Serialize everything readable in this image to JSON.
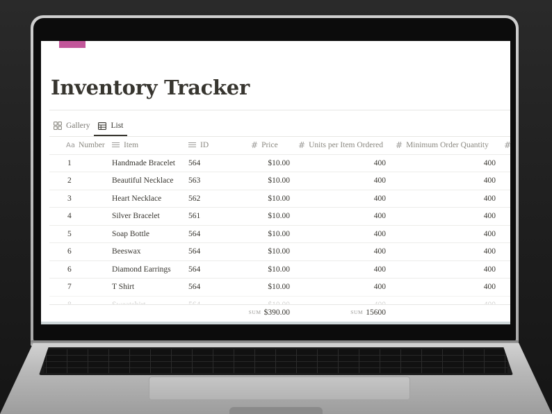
{
  "page": {
    "title": "Inventory Tracker",
    "accent_color": "#c2569a"
  },
  "views": [
    {
      "label": "Gallery",
      "icon": "gallery-grid-icon",
      "active": false
    },
    {
      "label": "List",
      "icon": "table-icon",
      "active": true
    }
  ],
  "table": {
    "columns": [
      {
        "label": "Number",
        "icon": "text-aa-icon"
      },
      {
        "label": "Item",
        "icon": "lines-icon"
      },
      {
        "label": "ID",
        "icon": "lines-icon"
      },
      {
        "label": "Price",
        "icon": "hash-icon"
      },
      {
        "label": "Units per Item Ordered",
        "icon": "hash-icon"
      },
      {
        "label": "Minimum Order Quantity",
        "icon": "hash-icon"
      },
      {
        "label": "#",
        "icon": "hash-icon"
      }
    ],
    "rows": [
      {
        "number": "1",
        "item": "Handmade Bracelet",
        "id": "564",
        "price": "$10.00",
        "units": "400",
        "min": "400"
      },
      {
        "number": "2",
        "item": "Beautiful Necklace",
        "id": "563",
        "price": "$10.00",
        "units": "400",
        "min": "400"
      },
      {
        "number": "3",
        "item": "Heart Necklace",
        "id": "562",
        "price": "$10.00",
        "units": "400",
        "min": "400"
      },
      {
        "number": "4",
        "item": "Silver Bracelet",
        "id": "561",
        "price": "$10.00",
        "units": "400",
        "min": "400"
      },
      {
        "number": "5",
        "item": "Soap Bottle",
        "id": "564",
        "price": "$10.00",
        "units": "400",
        "min": "400"
      },
      {
        "number": "6",
        "item": "Beeswax",
        "id": "564",
        "price": "$10.00",
        "units": "400",
        "min": "400"
      },
      {
        "number": "6",
        "item": "Diamond Earrings",
        "id": "564",
        "price": "$10.00",
        "units": "400",
        "min": "400"
      },
      {
        "number": "7",
        "item": "T Shirt",
        "id": "564",
        "price": "$10.00",
        "units": "400",
        "min": "400"
      },
      {
        "number": "8",
        "item": "Sweatshirt",
        "id": "564",
        "price": "$10.00",
        "units": "400",
        "min": "400"
      }
    ],
    "sums": {
      "label": "SUM",
      "price": "$390.00",
      "units": "15600"
    }
  }
}
